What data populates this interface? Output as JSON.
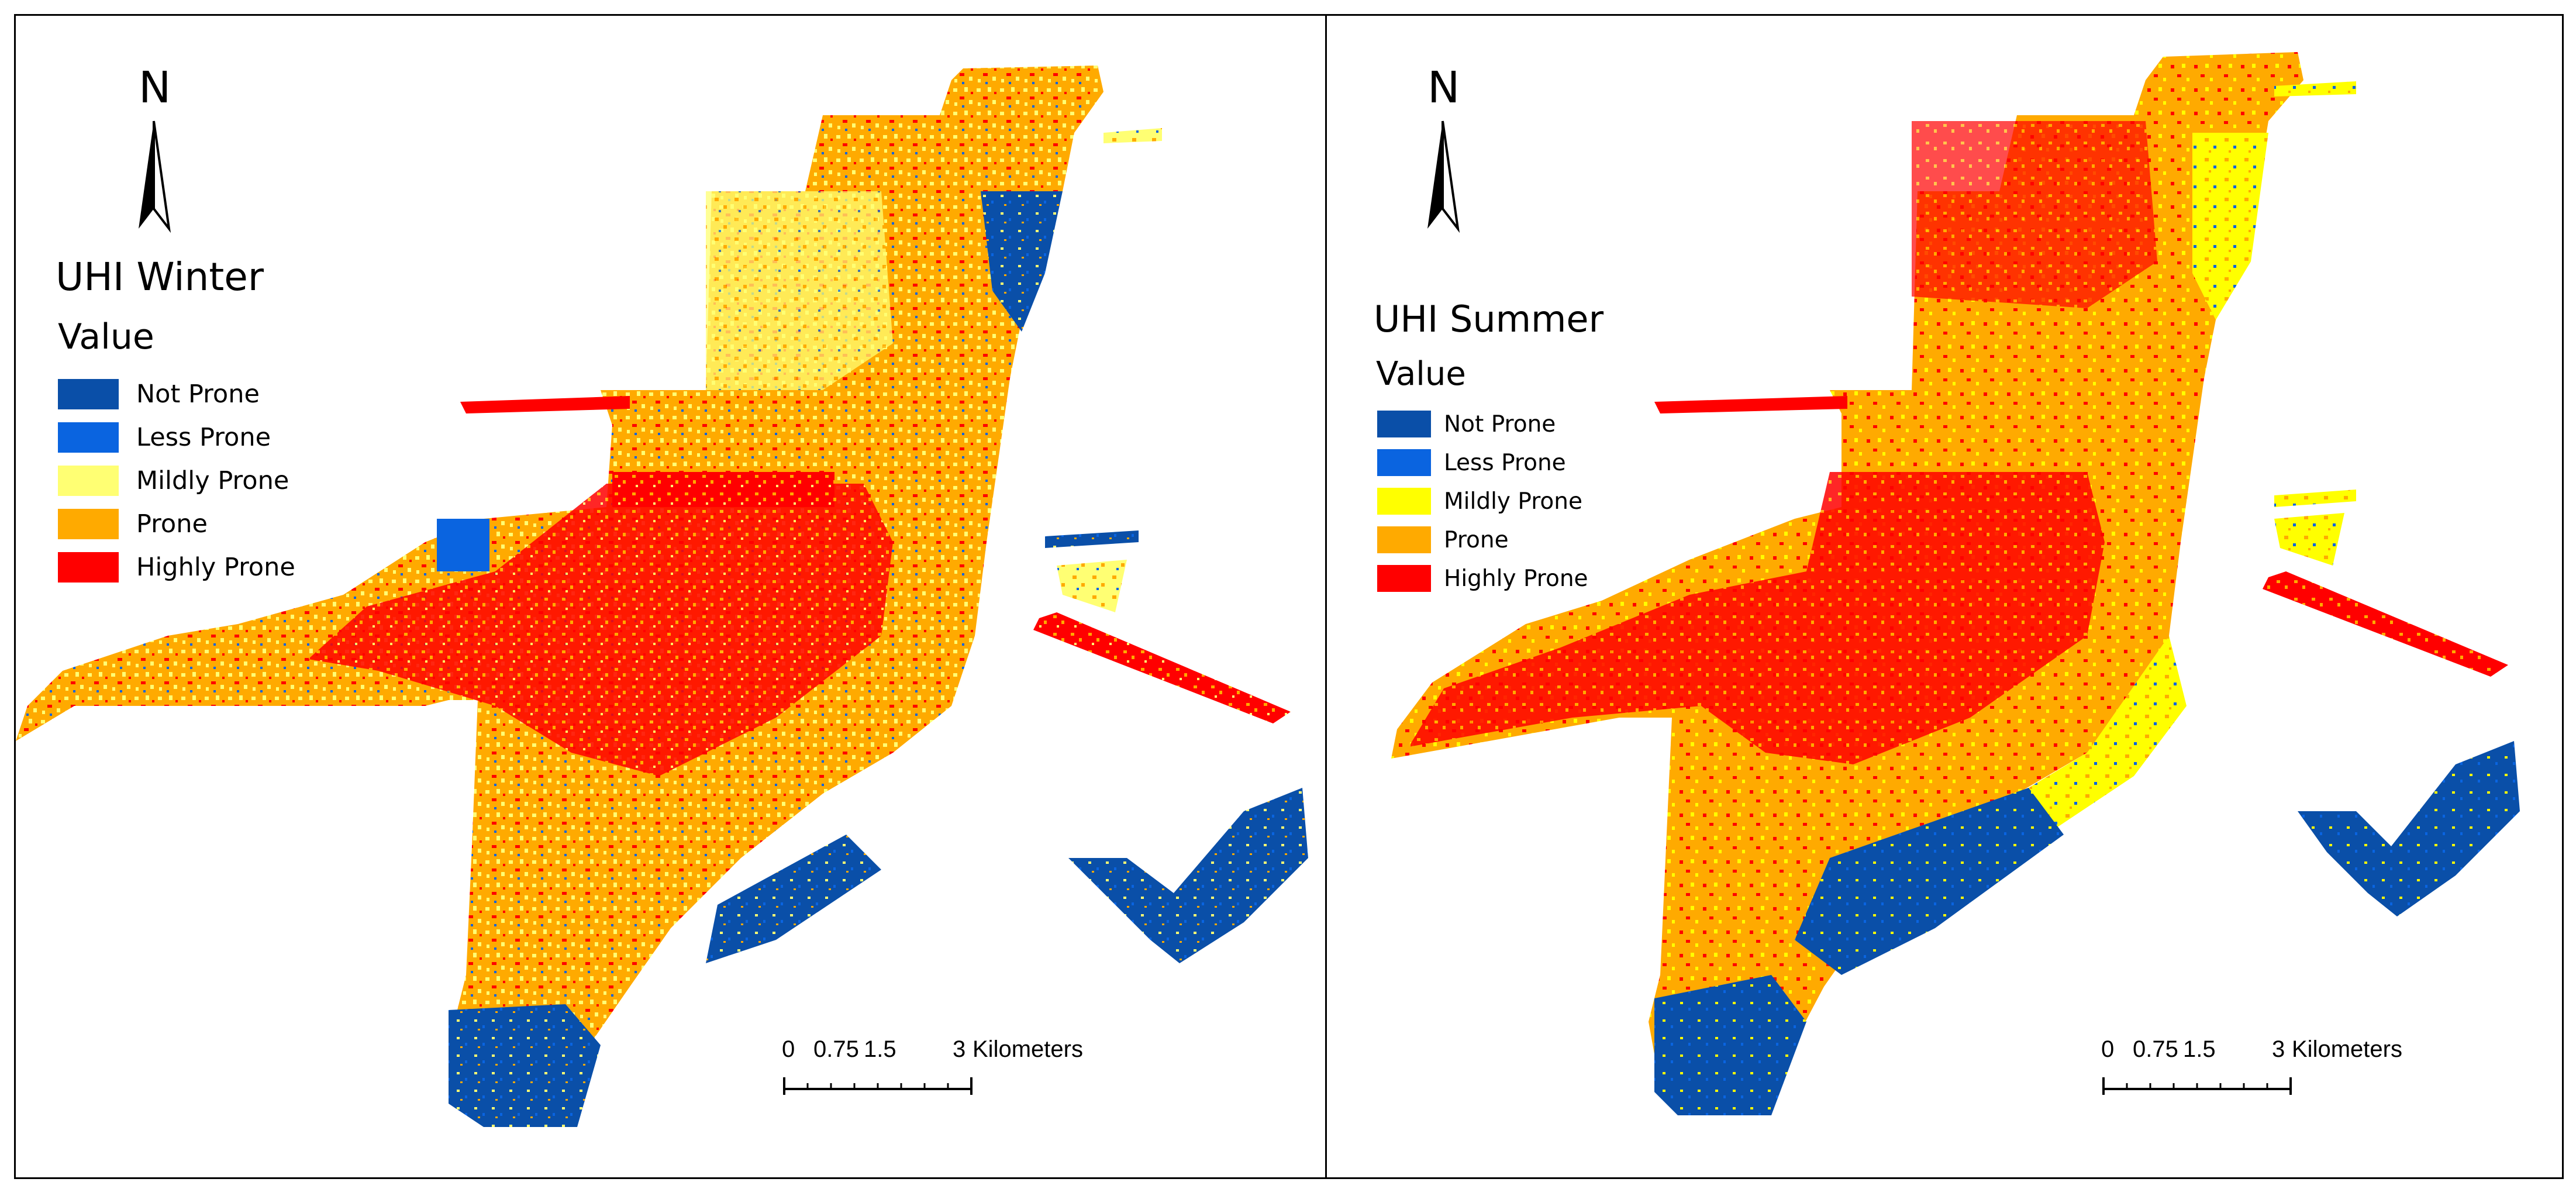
{
  "north_label": "N",
  "panels": [
    {
      "title": "UHI  Winter",
      "legend_heading": "Value",
      "legend": [
        {
          "label": "Not Prone",
          "color": "#0a4fa8"
        },
        {
          "label": "Less Prone",
          "color": "#0a64e0"
        },
        {
          "label": "Mildly Prone",
          "color": "#ffff73"
        },
        {
          "label": "Prone",
          "color": "#ffaa00"
        },
        {
          "label": "Highly Prone",
          "color": "#ff0000"
        }
      ],
      "scale": {
        "ticks": [
          "0",
          "0.75",
          "1.5",
          "3"
        ],
        "unit": "Kilometers"
      }
    },
    {
      "title": "UHI Summer",
      "legend_heading": "Value",
      "legend": [
        {
          "label": "Not Prone",
          "color": "#0a4fa8"
        },
        {
          "label": "Less Prone",
          "color": "#0a64e0"
        },
        {
          "label": "Mildly Prone",
          "color": "#ffff00"
        },
        {
          "label": "Prone",
          "color": "#ffaa00"
        },
        {
          "label": "Highly Prone",
          "color": "#ff0000"
        }
      ],
      "scale": {
        "ticks": [
          "0",
          "0.75",
          "1.5",
          "3"
        ],
        "unit": "Kilometers"
      }
    }
  ]
}
